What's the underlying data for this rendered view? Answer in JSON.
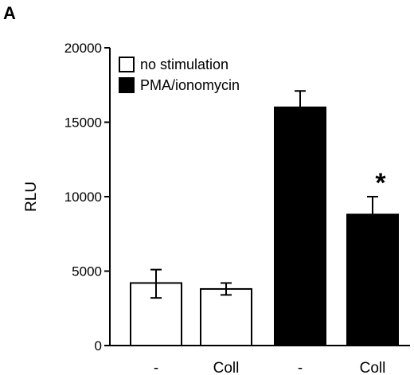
{
  "chart_data": {
    "type": "bar",
    "panel_label": "A",
    "ylabel": "RLU",
    "ylim": [
      0,
      20000
    ],
    "yticks": [
      0,
      5000,
      10000,
      15000,
      20000
    ],
    "categories": [
      "-",
      "Coll",
      "-",
      "Coll"
    ],
    "legend": {
      "placement": "top-left",
      "entries": [
        {
          "label": "no stimulation",
          "fill": "#ffffff"
        },
        {
          "label": "PMA/ionomycin",
          "fill": "#000000"
        }
      ]
    },
    "bars": [
      {
        "category": "-",
        "series": "no stimulation",
        "value": 4200,
        "error_high": 5100,
        "error_low": 3200,
        "fill": "#ffffff"
      },
      {
        "category": "Coll",
        "series": "no stimulation",
        "value": 3800,
        "error_high": 4200,
        "error_low": 3400,
        "fill": "#ffffff"
      },
      {
        "category": "-",
        "series": "PMA/ionomycin",
        "value": 16000,
        "error_high": 17100,
        "error_low": null,
        "fill": "#000000"
      },
      {
        "category": "Coll",
        "series": "PMA/ionomycin",
        "value": 8800,
        "error_high": 10000,
        "error_low": null,
        "fill": "#000000",
        "annotation": "*"
      }
    ]
  }
}
